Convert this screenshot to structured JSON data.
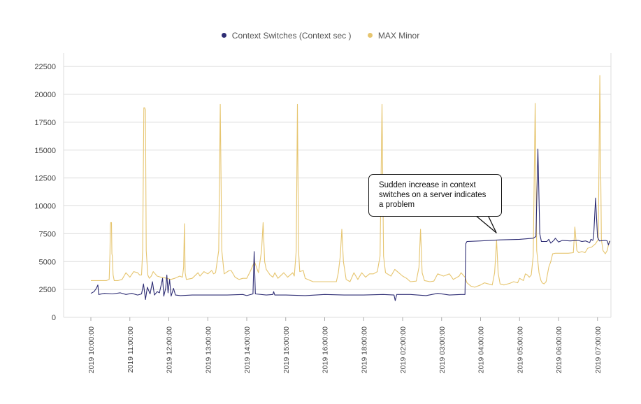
{
  "chart_data": {
    "type": "line",
    "x_labels": [
      "2019 10:00:00",
      "2019 11:00:00",
      "2019 12:00:00",
      "2019 13:00:00",
      "2019 14:00:00",
      "2019 15:00:00",
      "2019 16:00:00",
      "2019 18:00:00",
      "2019 02:00:00",
      "2019 03:00:00",
      "2019 04:00:00",
      "2019 05:00:00",
      "2019 06:00:00",
      "2019 07:00:00"
    ],
    "y_ticks": [
      0,
      2500,
      5000,
      7500,
      10000,
      12500,
      15000,
      17500,
      20000,
      22500
    ],
    "ylim": [
      0,
      23700
    ],
    "grid": true,
    "legend_position": "top-center",
    "series": [
      {
        "name": "Context Switches (Context sec )",
        "color": "#2e2d74",
        "points": [
          [
            0.0,
            2150
          ],
          [
            0.08,
            2300
          ],
          [
            0.14,
            2600
          ],
          [
            0.18,
            2900
          ],
          [
            0.2,
            2050
          ],
          [
            0.35,
            2150
          ],
          [
            0.55,
            2100
          ],
          [
            0.75,
            2200
          ],
          [
            0.9,
            2050
          ],
          [
            1.05,
            2150
          ],
          [
            1.2,
            2000
          ],
          [
            1.3,
            2100
          ],
          [
            1.35,
            3000
          ],
          [
            1.4,
            1600
          ],
          [
            1.45,
            2700
          ],
          [
            1.52,
            2100
          ],
          [
            1.58,
            3200
          ],
          [
            1.63,
            2000
          ],
          [
            1.7,
            2300
          ],
          [
            1.76,
            2200
          ],
          [
            1.84,
            3500
          ],
          [
            1.87,
            1900
          ],
          [
            1.92,
            2600
          ],
          [
            1.95,
            3800
          ],
          [
            1.98,
            2200
          ],
          [
            2.02,
            3400
          ],
          [
            2.06,
            1900
          ],
          [
            2.12,
            2600
          ],
          [
            2.17,
            2000
          ],
          [
            2.3,
            1950
          ],
          [
            2.6,
            2000
          ],
          [
            3.0,
            2000
          ],
          [
            3.5,
            2000
          ],
          [
            3.9,
            2050
          ],
          [
            4.0,
            1950
          ],
          [
            4.16,
            2100
          ],
          [
            4.19,
            5900
          ],
          [
            4.22,
            2100
          ],
          [
            4.5,
            2000
          ],
          [
            4.67,
            2050
          ],
          [
            4.69,
            2300
          ],
          [
            4.72,
            2000
          ],
          [
            5.0,
            2000
          ],
          [
            5.5,
            1950
          ],
          [
            6.0,
            2050
          ],
          [
            6.5,
            2000
          ],
          [
            7.0,
            2000
          ],
          [
            7.5,
            2050
          ],
          [
            7.78,
            2000
          ],
          [
            7.81,
            1500
          ],
          [
            7.85,
            2050
          ],
          [
            8.2,
            2050
          ],
          [
            8.6,
            1950
          ],
          [
            8.9,
            2150
          ],
          [
            9.2,
            2000
          ],
          [
            9.5,
            2050
          ],
          [
            9.6,
            2050
          ],
          [
            9.62,
            6600
          ],
          [
            9.65,
            6800
          ],
          [
            10.0,
            6850
          ],
          [
            10.5,
            6950
          ],
          [
            11.0,
            7000
          ],
          [
            11.35,
            7100
          ],
          [
            11.42,
            7250
          ],
          [
            11.47,
            15100
          ],
          [
            11.52,
            7500
          ],
          [
            11.56,
            6800
          ],
          [
            11.7,
            6800
          ],
          [
            11.75,
            7000
          ],
          [
            11.8,
            6650
          ],
          [
            11.88,
            6900
          ],
          [
            11.92,
            7100
          ],
          [
            12.0,
            6750
          ],
          [
            12.1,
            6900
          ],
          [
            12.3,
            6850
          ],
          [
            12.5,
            6900
          ],
          [
            12.6,
            6800
          ],
          [
            12.7,
            6850
          ],
          [
            12.8,
            6700
          ],
          [
            12.83,
            7000
          ],
          [
            12.88,
            6900
          ],
          [
            12.9,
            7200
          ],
          [
            12.95,
            10700
          ],
          [
            13.0,
            7200
          ],
          [
            13.05,
            6850
          ],
          [
            13.2,
            6900
          ],
          [
            13.25,
            6850
          ],
          [
            13.28,
            6500
          ],
          [
            13.32,
            6850
          ]
        ]
      },
      {
        "name": "MAX Minor",
        "color": "#e6c56f",
        "points": [
          [
            0.0,
            3300
          ],
          [
            0.2,
            3300
          ],
          [
            0.4,
            3300
          ],
          [
            0.47,
            3400
          ],
          [
            0.49,
            5700
          ],
          [
            0.5,
            8300
          ],
          [
            0.51,
            8500
          ],
          [
            0.53,
            8500
          ],
          [
            0.54,
            5700
          ],
          [
            0.55,
            5500
          ],
          [
            0.57,
            3800
          ],
          [
            0.6,
            3300
          ],
          [
            0.7,
            3300
          ],
          [
            0.8,
            3400
          ],
          [
            0.9,
            4000
          ],
          [
            1.0,
            3600
          ],
          [
            1.1,
            4100
          ],
          [
            1.2,
            4000
          ],
          [
            1.25,
            3800
          ],
          [
            1.3,
            3800
          ],
          [
            1.33,
            6000
          ],
          [
            1.36,
            18800
          ],
          [
            1.38,
            18800
          ],
          [
            1.4,
            18600
          ],
          [
            1.42,
            6000
          ],
          [
            1.46,
            3800
          ],
          [
            1.5,
            3500
          ],
          [
            1.55,
            3700
          ],
          [
            1.6,
            4100
          ],
          [
            1.65,
            3900
          ],
          [
            1.7,
            3700
          ],
          [
            1.8,
            3600
          ],
          [
            1.95,
            3500
          ],
          [
            2.05,
            3400
          ],
          [
            2.15,
            3500
          ],
          [
            2.28,
            3700
          ],
          [
            2.35,
            3600
          ],
          [
            2.38,
            4500
          ],
          [
            2.4,
            8400
          ],
          [
            2.42,
            4000
          ],
          [
            2.45,
            3400
          ],
          [
            2.6,
            3500
          ],
          [
            2.75,
            4000
          ],
          [
            2.8,
            3700
          ],
          [
            2.9,
            4100
          ],
          [
            3.0,
            3900
          ],
          [
            3.1,
            4200
          ],
          [
            3.15,
            3900
          ],
          [
            3.2,
            4000
          ],
          [
            3.28,
            6000
          ],
          [
            3.32,
            19100
          ],
          [
            3.36,
            6000
          ],
          [
            3.42,
            3900
          ],
          [
            3.55,
            4200
          ],
          [
            3.6,
            4200
          ],
          [
            3.7,
            3600
          ],
          [
            3.8,
            3400
          ],
          [
            3.9,
            3500
          ],
          [
            4.0,
            3500
          ],
          [
            4.1,
            4200
          ],
          [
            4.2,
            5000
          ],
          [
            4.3,
            4000
          ],
          [
            4.38,
            6000
          ],
          [
            4.42,
            8500
          ],
          [
            4.46,
            5000
          ],
          [
            4.5,
            4300
          ],
          [
            4.6,
            3800
          ],
          [
            4.67,
            3600
          ],
          [
            4.72,
            4000
          ],
          [
            4.8,
            3500
          ],
          [
            4.95,
            4000
          ],
          [
            5.05,
            3600
          ],
          [
            5.18,
            4000
          ],
          [
            5.22,
            3700
          ],
          [
            5.27,
            6000
          ],
          [
            5.3,
            19100
          ],
          [
            5.33,
            6000
          ],
          [
            5.36,
            4100
          ],
          [
            5.45,
            4200
          ],
          [
            5.5,
            3500
          ],
          [
            5.7,
            3200
          ],
          [
            5.9,
            3200
          ],
          [
            6.1,
            3200
          ],
          [
            6.3,
            3200
          ],
          [
            6.35,
            4000
          ],
          [
            6.4,
            5500
          ],
          [
            6.44,
            7900
          ],
          [
            6.48,
            5000
          ],
          [
            6.55,
            3400
          ],
          [
            6.65,
            3200
          ],
          [
            6.75,
            4000
          ],
          [
            6.85,
            3400
          ],
          [
            6.95,
            4000
          ],
          [
            7.05,
            3600
          ],
          [
            7.15,
            3900
          ],
          [
            7.25,
            3900
          ],
          [
            7.35,
            4100
          ],
          [
            7.42,
            5500
          ],
          [
            7.47,
            19100
          ],
          [
            7.51,
            5500
          ],
          [
            7.56,
            4000
          ],
          [
            7.7,
            3700
          ],
          [
            7.8,
            4300
          ],
          [
            7.9,
            4000
          ],
          [
            8.0,
            3700
          ],
          [
            8.1,
            3500
          ],
          [
            8.2,
            3200
          ],
          [
            8.35,
            3250
          ],
          [
            8.42,
            4500
          ],
          [
            8.46,
            7900
          ],
          [
            8.5,
            4000
          ],
          [
            8.56,
            3300
          ],
          [
            8.7,
            3200
          ],
          [
            8.8,
            3250
          ],
          [
            8.9,
            3900
          ],
          [
            9.05,
            3700
          ],
          [
            9.2,
            3900
          ],
          [
            9.3,
            3400
          ],
          [
            9.45,
            3700
          ],
          [
            9.5,
            4000
          ],
          [
            9.55,
            3800
          ],
          [
            9.6,
            3600
          ],
          [
            9.65,
            3100
          ],
          [
            9.75,
            2800
          ],
          [
            9.85,
            2700
          ],
          [
            10.0,
            2900
          ],
          [
            10.1,
            3100
          ],
          [
            10.2,
            3000
          ],
          [
            10.3,
            2900
          ],
          [
            10.36,
            4000
          ],
          [
            10.41,
            6900
          ],
          [
            10.45,
            4000
          ],
          [
            10.5,
            3000
          ],
          [
            10.6,
            2900
          ],
          [
            10.75,
            3050
          ],
          [
            10.85,
            3200
          ],
          [
            10.95,
            3100
          ],
          [
            11.0,
            3500
          ],
          [
            11.1,
            3300
          ],
          [
            11.15,
            3900
          ],
          [
            11.2,
            3800
          ],
          [
            11.25,
            3600
          ],
          [
            11.3,
            3800
          ],
          [
            11.35,
            5500
          ],
          [
            11.4,
            19200
          ],
          [
            11.44,
            6000
          ],
          [
            11.5,
            4000
          ],
          [
            11.55,
            3300
          ],
          [
            11.58,
            3100
          ],
          [
            11.63,
            3000
          ],
          [
            11.68,
            3200
          ],
          [
            11.75,
            4500
          ],
          [
            11.8,
            5000
          ],
          [
            11.85,
            5700
          ],
          [
            11.92,
            5750
          ],
          [
            12.05,
            5750
          ],
          [
            12.25,
            5750
          ],
          [
            12.38,
            5800
          ],
          [
            12.42,
            8100
          ],
          [
            12.47,
            6000
          ],
          [
            12.52,
            5800
          ],
          [
            12.6,
            5900
          ],
          [
            12.68,
            5800
          ],
          [
            12.75,
            6200
          ],
          [
            12.85,
            6300
          ],
          [
            12.95,
            6600
          ],
          [
            13.02,
            7000
          ],
          [
            13.06,
            21700
          ],
          [
            13.1,
            7000
          ],
          [
            13.14,
            6000
          ],
          [
            13.2,
            5700
          ],
          [
            13.25,
            6000
          ],
          [
            13.3,
            6800
          ],
          [
            13.32,
            6800
          ]
        ]
      }
    ]
  },
  "annotation": {
    "lines": [
      "Sudden increase in context",
      "switches on a server indicates",
      "a problem"
    ]
  }
}
